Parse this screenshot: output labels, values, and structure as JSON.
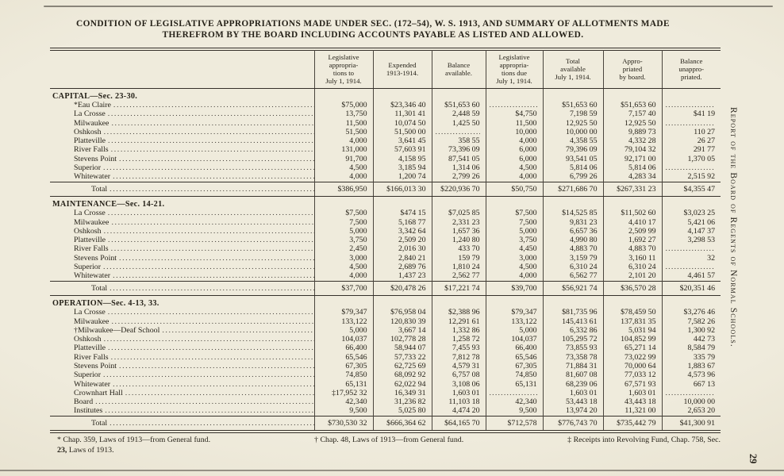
{
  "page": {
    "title_line1": "CONDITION OF LEGISLATIVE APPROPRIATIONS MADE UNDER SEC. (172–54), W. S. 1913, AND SUMMARY OF ALLOTMENTS MADE",
    "title_line2": "THEREFROM BY THE BOARD INCLUDING ACCOUNTS PAYABLE AS LISTED AND ALLOWED.",
    "side_text": "Report of the Board of Regents of Normal Schools.",
    "page_number": "29"
  },
  "table": {
    "columns": [
      "Legislative\nappropria-\ntions to\nJuly 1, 1914.",
      "Expended\n1913-1914.",
      "Balance\navailable.",
      "Legislative\nappropria-\ntions due\nJuly 1, 1914.",
      "Total\navailable\nJuly 1, 1914.",
      "Appro-\npriated\nby board.",
      "Balance\nunappro-\npriated."
    ],
    "sections": [
      {
        "title": "CAPITAL—Sec. 23-30.",
        "rows": [
          {
            "label": "*Eau Claire",
            "values": [
              "$75,000",
              "$23,346 40",
              "$51,653 60",
              "",
              "$51,653 60",
              "$51,653 60",
              ""
            ]
          },
          {
            "label": "La Crosse",
            "values": [
              "13,750",
              "11,301 41",
              "2,448 59",
              "$4,750",
              "7,198 59",
              "7,157 40",
              "$41 19"
            ]
          },
          {
            "label": "Milwaukee",
            "values": [
              "11,500",
              "10,074 50",
              "1,425 50",
              "11,500",
              "12,925 50",
              "12,925 50",
              ""
            ]
          },
          {
            "label": "Oshkosh",
            "values": [
              "51,500",
              "51,500 00",
              "",
              "10,000",
              "10,000 00",
              "9,889 73",
              "110 27"
            ]
          },
          {
            "label": "Platteville",
            "values": [
              "4,000",
              "3,641 45",
              "358 55",
              "4,000",
              "4,358 55",
              "4,332 28",
              "26 27"
            ]
          },
          {
            "label": "River Falls",
            "values": [
              "131,000",
              "57,603 91",
              "73,396 09",
              "6,000",
              "79,396 09",
              "79,104 32",
              "291 77"
            ]
          },
          {
            "label": "Stevens Point",
            "values": [
              "91,700",
              "4,158 95",
              "87,541 05",
              "6,000",
              "93,541 05",
              "92,171 00",
              "1,370 05"
            ]
          },
          {
            "label": "Superior",
            "values": [
              "4,500",
              "3,185 94",
              "1,314 06",
              "4,500",
              "5,814 06",
              "5,814 06",
              ""
            ]
          },
          {
            "label": "Whitewater",
            "values": [
              "4,000",
              "1,200 74",
              "2,799 26",
              "4,000",
              "6,799 26",
              "4,283 34",
              "2,515 92"
            ]
          }
        ],
        "total": {
          "label": "Total",
          "values": [
            "$386,950",
            "$166,013 30",
            "$220,936 70",
            "$50,750",
            "$271,686 70",
            "$267,331 23",
            "$4,355 47"
          ]
        }
      },
      {
        "title": "MAINTENANCE—Sec. 14-21.",
        "rows": [
          {
            "label": "La Crosse",
            "values": [
              "$7,500",
              "$474 15",
              "$7,025 85",
              "$7,500",
              "$14,525 85",
              "$11,502 60",
              "$3,023 25"
            ]
          },
          {
            "label": "Milwaukee",
            "values": [
              "7,500",
              "5,168 77",
              "2,331 23",
              "7,500",
              "9,831 23",
              "4,410 17",
              "5,421 06"
            ]
          },
          {
            "label": "Oshkosh",
            "values": [
              "5,000",
              "3,342 64",
              "1,657 36",
              "5,000",
              "6,657 36",
              "2,509 99",
              "4,147 37"
            ]
          },
          {
            "label": "Platteville",
            "values": [
              "3,750",
              "2,509 20",
              "1,240 80",
              "3,750",
              "4,990 80",
              "1,692 27",
              "3,298 53"
            ]
          },
          {
            "label": "River Falls",
            "values": [
              "2,450",
              "2,016 30",
              "433 70",
              "4,450",
              "4,883 70",
              "4,883 70",
              ""
            ]
          },
          {
            "label": "Stevens Point",
            "values": [
              "3,000",
              "2,840 21",
              "159 79",
              "3,000",
              "3,159 79",
              "3,160 11",
              "32"
            ]
          },
          {
            "label": "Superior",
            "values": [
              "4,500",
              "2,689 76",
              "1,810 24",
              "4,500",
              "6,310 24",
              "6,310 24",
              ""
            ]
          },
          {
            "label": "Whitewater",
            "values": [
              "4,000",
              "1,437 23",
              "2,562 77",
              "4,000",
              "6,562 77",
              "2,101 20",
              "4,461 57"
            ]
          }
        ],
        "total": {
          "label": "Total",
          "values": [
            "$37,700",
            "$20,478 26",
            "$17,221 74",
            "$39,700",
            "$56,921 74",
            "$36,570 28",
            "$20,351 46"
          ]
        }
      },
      {
        "title": "OPERATION—Sec. 4-13, 33.",
        "rows": [
          {
            "label": "La Crosse",
            "values": [
              "$79,347",
              "$76,958 04",
              "$2,388 96",
              "$79,347",
              "$81,735 96",
              "$78,459 50",
              "$3,276 46"
            ]
          },
          {
            "label": "Milwaukee",
            "values": [
              "133,122",
              "120,830 39",
              "12,291 61",
              "133,122",
              "145,413 61",
              "137,831 35",
              "7,582 26"
            ]
          },
          {
            "label": "†Milwaukee—Deaf School",
            "values": [
              "5,000",
              "3,667 14",
              "1,332 86",
              "5,000",
              "6,332 86",
              "5,031 94",
              "1,300 92"
            ]
          },
          {
            "label": "Oshkosh",
            "values": [
              "104,037",
              "102,778 28",
              "1,258 72",
              "104,037",
              "105,295 72",
              "104,852 99",
              "442 73"
            ]
          },
          {
            "label": "Platteville",
            "values": [
              "66,400",
              "58,944 07",
              "7,455 93",
              "66,400",
              "73,855 93",
              "65,271 14",
              "8,584 79"
            ]
          },
          {
            "label": "River Falls",
            "values": [
              "65,546",
              "57,733 22",
              "7,812 78",
              "65,546",
              "73,358 78",
              "73,022 99",
              "335 79"
            ]
          },
          {
            "label": "Stevens Point",
            "values": [
              "67,305",
              "62,725 69",
              "4,579 31",
              "67,305",
              "71,884 31",
              "70,000 64",
              "1,883 67"
            ]
          },
          {
            "label": "Superior",
            "values": [
              "74,850",
              "68,092 92",
              "6,757 08",
              "74,850",
              "81,607 08",
              "77,033 12",
              "4,573 96"
            ]
          },
          {
            "label": "Whitewater",
            "values": [
              "65,131",
              "62,022 94",
              "3,108 06",
              "65,131",
              "68,239 06",
              "67,571 93",
              "667 13"
            ]
          },
          {
            "label": "Crownhart Hall",
            "values": [
              "‡17,952 32",
              "16,349 31",
              "1,603 01",
              "",
              "1,603 01",
              "1,603 01",
              ""
            ]
          },
          {
            "label": "Board",
            "values": [
              "42,340",
              "31,236 82",
              "11,103 18",
              "42,340",
              "53,443 18",
              "43,443 18",
              "10,000 00"
            ]
          },
          {
            "label": "Institutes",
            "values": [
              "9,500",
              "5,025 80",
              "4,474 20",
              "9,500",
              "13,974 20",
              "11,321 00",
              "2,653 20"
            ]
          }
        ],
        "total": {
          "label": "Total",
          "values": [
            "$730,530 32",
            "$666,364 62",
            "$64,165 70",
            "$712,578",
            "$776,743 70",
            "$735,442 79",
            "$41,300 91"
          ]
        }
      }
    ]
  },
  "footnotes": {
    "items": [
      "* Chap. 359, Laws of 1913—from General fund.",
      "† Chap. 48, Laws of 1913—from General fund.",
      "‡ Receipts into Revolving Fund, Chap. 758, Sec."
    ],
    "line2_bold": "23,",
    "line2_rest": " Laws of 1913."
  }
}
